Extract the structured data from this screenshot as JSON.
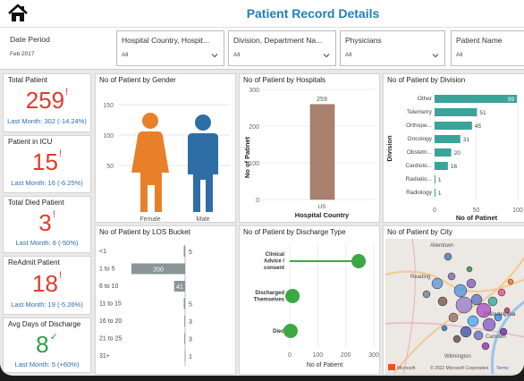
{
  "header": {
    "title": "Patient Record Details"
  },
  "filters": [
    {
      "label": "Date Period",
      "value": "Feb 2017"
    },
    {
      "label": "Hospital Country, Hospit...",
      "value": "All"
    },
    {
      "label": "Division, Department Na...",
      "value": "All"
    },
    {
      "label": "Physicians",
      "value": "All"
    },
    {
      "label": "Patient Name",
      "value": "All"
    }
  ],
  "kpis": [
    {
      "label": "Total Patient",
      "value": "259",
      "sub": "Last Month: 302 (-14.24%)",
      "color": "#e03b2a",
      "mark": "!"
    },
    {
      "label": "Patient in ICU",
      "value": "15",
      "sub": "Last Month: 16 (-6.25%)",
      "color": "#e03b2a",
      "mark": "!"
    },
    {
      "label": "Total Died Patient",
      "value": "3",
      "sub": "Last Month: 6 (-50%)",
      "color": "#e03b2a",
      "mark": "!"
    },
    {
      "label": "ReAdmit Patient",
      "value": "18",
      "sub": "Last Month: 19 (-5.26%)",
      "color": "#e03b2a",
      "mark": "!"
    },
    {
      "label": "Avg Days of Discharge",
      "value": "8",
      "sub": "Last Month: 5 (+60%)",
      "color": "#2e9e48",
      "mark": "✓"
    }
  ],
  "gender_chart": {
    "title": "No of Patient by Gender",
    "y_ticks": [
      "150",
      "100",
      "50"
    ],
    "categories": [
      "Female",
      "Male"
    ],
    "colors": {
      "female": "#e8802a",
      "male": "#2e6ea5"
    }
  },
  "hospital_chart": {
    "title": "No of Patient by Hospitals",
    "ylabel": "No of Patinet",
    "xlabel": "Hospital Country",
    "y_ticks": [
      "300",
      "200",
      "100",
      "0"
    ],
    "ylim": [
      0,
      300
    ],
    "categories": [
      "US"
    ],
    "values": [
      259
    ],
    "value_labels": [
      "259"
    ],
    "bar_color": "#a8826e"
  },
  "division_chart": {
    "title": "No of Patient by Division",
    "ylabel": "Division",
    "xlabel": "No of Patinet",
    "x_ticks": [
      "0",
      "50",
      "100"
    ],
    "xlim": [
      0,
      100
    ],
    "categories": [
      "Other",
      "Telemetry",
      "Orthope...",
      "Oncology",
      "Obstetri...",
      "Cardiolo...",
      "Radiatio...",
      "Radiology"
    ],
    "values": [
      99,
      51,
      45,
      31,
      20,
      16,
      1,
      1
    ],
    "bar_color": "#3aa39a"
  },
  "los_chart": {
    "title": "No of Patient by LOS Bucket",
    "categories": [
      "<1",
      "1 to 5",
      "6 to 10",
      "11 to 15",
      "16 to 20",
      "21 to 25",
      "31+"
    ],
    "values": [
      5,
      200,
      41,
      5,
      3,
      3,
      1
    ],
    "bar_color": "#8a9598"
  },
  "discharge_chart": {
    "title": "No of Patient by Discharge Type",
    "xlabel": "No of Patient",
    "x_ticks": [
      "0",
      "100",
      "200",
      "300"
    ],
    "xlim": [
      0,
      300
    ],
    "categories": [
      "Clinical Advice / consent",
      "Discharged Themselves",
      "Died"
    ],
    "values": [
      246,
      10,
      3
    ],
    "color": "#3aa843"
  },
  "city_map": {
    "title": "No of Patient by City",
    "place_labels": [
      "Allentown",
      "Reading",
      "Philadelphia",
      "Camden",
      "Wilmington"
    ],
    "attribution": "© 2022 Microsoft Corporation",
    "terms": "Terms",
    "brand": "Microsoft"
  }
}
